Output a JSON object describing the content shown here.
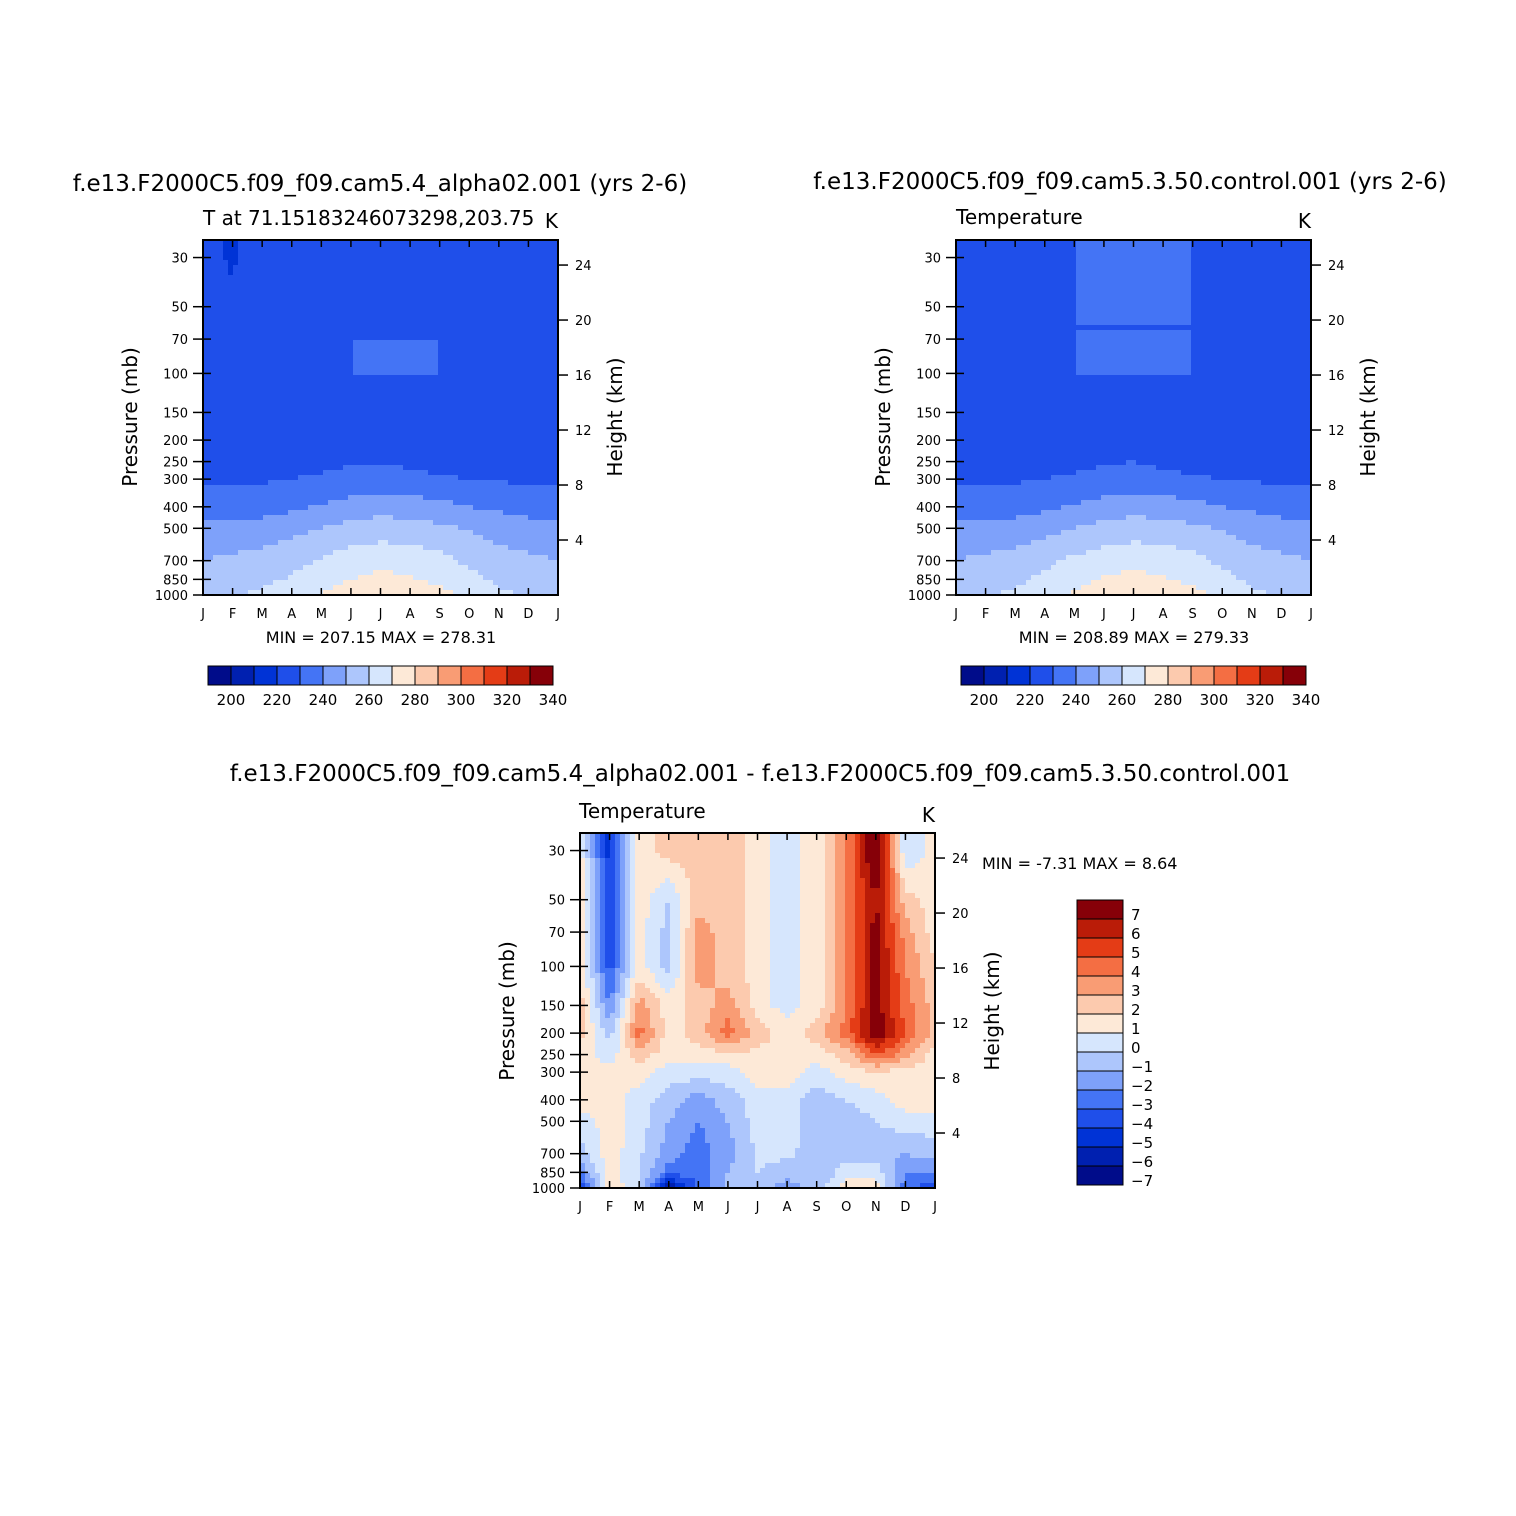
{
  "palette": {
    "temperature": [
      "#000c8a",
      "#0020b0",
      "#0033d6",
      "#1f4fea",
      "#4474f5",
      "#7ea1fa",
      "#adc6fc",
      "#d6e6fd",
      "#fde9d7",
      "#fccaae",
      "#f99c74",
      "#f46e43",
      "#e43c16",
      "#ba1c08",
      "#860008"
    ],
    "difference": [
      "#000c8a",
      "#0020b0",
      "#0033d6",
      "#1f4fea",
      "#4474f5",
      "#7ea1fa",
      "#adc6fc",
      "#d6e6fd",
      "#fde9d7",
      "#fccaae",
      "#f99c74",
      "#f46e43",
      "#e43c16",
      "#ba1c08",
      "#860008"
    ]
  },
  "panels": [
    {
      "id": "alpha02",
      "title": "f.e13.F2000C5.f09_f09.cam5.4_alpha02.001 (yrs 2-6)",
      "left_label": "T at 71.15183246073298,203.75",
      "right_label": "K",
      "stats": "MIN =  207.15  MAX =  278.31"
    },
    {
      "id": "control",
      "title": "f.e13.F2000C5.f09_f09.cam5.3.50.control.001 (yrs 2-6)",
      "left_label": "Temperature",
      "right_label": "K",
      "stats": "MIN =  208.89  MAX =  279.33"
    },
    {
      "id": "difference",
      "title": "f.e13.F2000C5.f09_f09.cam5.4_alpha02.001 - f.e13.F2000C5.f09_f09.cam5.3.50.control.001",
      "left_label": "Temperature",
      "right_label": "K",
      "stats": "MIN =   -7.31  MAX =    8.64"
    }
  ],
  "chart_data": [
    {
      "type": "heatmap",
      "title": "f.e13.F2000C5.f09_f09.cam5.4_alpha02.001 (yrs 2-6)",
      "subtitle": "T at 71.15183246073298,203.75",
      "units": "K",
      "xlabel": "",
      "ylabel": "Pressure (mb)",
      "y2label": "Height (km)",
      "x_ticks": [
        "J",
        "F",
        "M",
        "A",
        "M",
        "J",
        "J",
        "A",
        "S",
        "O",
        "N",
        "D",
        "J"
      ],
      "y_ticks": [
        30,
        50,
        70,
        100,
        150,
        200,
        250,
        300,
        400,
        500,
        700,
        850,
        1000
      ],
      "y2_ticks": [
        24,
        20,
        16,
        12,
        8,
        4
      ],
      "ylim": [
        1000,
        25
      ],
      "y_scale": "log",
      "levels": [
        200,
        210,
        220,
        230,
        240,
        250,
        260,
        270,
        280,
        290,
        300,
        310,
        320,
        330,
        340
      ],
      "colorbar_labels": [
        200,
        220,
        240,
        260,
        280,
        300,
        320,
        340
      ],
      "pressure": [
        1000,
        850,
        700,
        500,
        400,
        300,
        250,
        200,
        150,
        100,
        70,
        50,
        30
      ],
      "months": [
        "J",
        "F",
        "M",
        "A",
        "M",
        "J",
        "J",
        "A",
        "S",
        "O",
        "N",
        "D",
        "J"
      ],
      "values": [
        [
          257,
          259,
          262,
          265,
          270,
          275,
          278,
          276,
          273,
          267,
          262,
          259,
          257
        ],
        [
          254,
          256,
          258,
          261,
          266,
          270,
          273,
          271,
          268,
          263,
          258,
          256,
          254
        ],
        [
          250,
          252,
          254,
          257,
          261,
          265,
          267,
          266,
          263,
          258,
          254,
          252,
          250
        ],
        [
          242,
          243,
          244,
          247,
          250,
          253,
          255,
          254,
          252,
          249,
          246,
          244,
          242
        ],
        [
          235,
          236,
          236,
          238,
          241,
          244,
          246,
          245,
          243,
          240,
          238,
          236,
          235
        ],
        [
          229,
          229,
          229,
          230,
          231,
          233,
          234,
          233,
          231,
          230,
          229,
          229,
          229
        ],
        [
          227,
          226,
          226,
          227,
          228,
          229,
          229,
          228,
          227,
          226,
          226,
          226,
          227
        ],
        [
          226,
          224,
          225,
          226,
          227,
          227,
          226,
          225,
          224,
          225,
          225,
          226,
          226
        ],
        [
          226,
          225,
          225,
          227,
          228,
          228,
          228,
          228,
          227,
          226,
          228,
          227,
          226
        ],
        [
          226,
          223,
          226,
          228,
          229,
          230,
          230,
          230,
          230,
          228,
          227,
          226,
          226
        ],
        [
          225,
          222,
          226,
          228,
          229,
          230,
          230,
          230,
          230,
          227,
          227,
          225,
          225
        ],
        [
          224,
          221,
          226,
          228,
          229,
          229,
          229,
          229,
          229,
          226,
          225,
          225,
          224
        ],
        [
          223,
          219,
          226,
          228,
          229,
          229,
          229,
          229,
          229,
          226,
          225,
          230,
          223
        ]
      ]
    },
    {
      "type": "heatmap",
      "title": "f.e13.F2000C5.f09_f09.cam5.3.50.control.001 (yrs 2-6)",
      "subtitle": "Temperature",
      "units": "K",
      "xlabel": "",
      "ylabel": "Pressure (mb)",
      "y2label": "Height (km)",
      "x_ticks": [
        "J",
        "F",
        "M",
        "A",
        "M",
        "J",
        "J",
        "A",
        "S",
        "O",
        "N",
        "D",
        "J"
      ],
      "y_ticks": [
        30,
        50,
        70,
        100,
        150,
        200,
        250,
        300,
        400,
        500,
        700,
        850,
        1000
      ],
      "y2_ticks": [
        24,
        20,
        16,
        12,
        8,
        4
      ],
      "ylim": [
        1000,
        25
      ],
      "y_scale": "log",
      "levels": [
        200,
        210,
        220,
        230,
        240,
        250,
        260,
        270,
        280,
        290,
        300,
        310,
        320,
        330,
        340
      ],
      "colorbar_labels": [
        200,
        220,
        240,
        260,
        280,
        300,
        320,
        340
      ],
      "pressure": [
        1000,
        850,
        700,
        500,
        400,
        300,
        250,
        200,
        150,
        100,
        70,
        50,
        30
      ],
      "months": [
        "J",
        "F",
        "M",
        "A",
        "M",
        "J",
        "J",
        "A",
        "S",
        "O",
        "N",
        "D",
        "J"
      ],
      "values": [
        [
          257,
          259,
          262,
          266,
          271,
          276,
          279,
          277,
          273,
          267,
          262,
          259,
          257
        ],
        [
          254,
          256,
          258,
          262,
          266,
          271,
          273,
          271,
          268,
          263,
          258,
          256,
          254
        ],
        [
          250,
          252,
          254,
          258,
          262,
          265,
          267,
          266,
          263,
          258,
          254,
          252,
          250
        ],
        [
          242,
          243,
          244,
          247,
          250,
          253,
          255,
          254,
          252,
          249,
          246,
          244,
          242
        ],
        [
          235,
          236,
          236,
          238,
          241,
          244,
          246,
          245,
          243,
          240,
          238,
          236,
          235
        ],
        [
          229,
          229,
          229,
          230,
          231,
          233,
          234,
          233,
          231,
          230,
          229,
          229,
          229
        ],
        [
          227,
          226,
          226,
          227,
          228,
          229,
          230,
          228,
          227,
          226,
          225,
          226,
          227
        ],
        [
          226,
          226,
          226,
          227,
          228,
          229,
          229,
          228,
          227,
          226,
          222,
          223,
          226
        ],
        [
          226,
          226,
          227,
          228,
          229,
          229,
          229,
          229,
          229,
          228,
          225,
          226,
          226
        ],
        [
          226,
          226,
          227,
          229,
          230,
          230,
          230,
          230,
          230,
          229,
          226,
          226,
          226
        ],
        [
          225,
          225,
          227,
          230,
          230,
          230,
          230,
          230,
          230,
          228,
          226,
          225,
          225
        ],
        [
          225,
          225,
          226,
          229,
          230,
          230,
          230,
          230,
          230,
          227,
          226,
          225,
          225
        ],
        [
          225,
          225,
          226,
          229,
          230,
          230,
          230,
          230,
          230,
          227,
          226,
          225,
          225
        ]
      ]
    },
    {
      "type": "heatmap",
      "title": "f.e13.F2000C5.f09_f09.cam5.4_alpha02.001 - f.e13.F2000C5.f09_f09.cam5.3.50.control.001",
      "subtitle": "Temperature",
      "units": "K",
      "xlabel": "",
      "ylabel": "Pressure (mb)",
      "y2label": "Height (km)",
      "x_ticks": [
        "J",
        "F",
        "M",
        "A",
        "M",
        "J",
        "J",
        "A",
        "S",
        "O",
        "N",
        "D",
        "J"
      ],
      "y_ticks": [
        30,
        50,
        70,
        100,
        150,
        200,
        250,
        300,
        400,
        500,
        700,
        850,
        1000
      ],
      "y2_ticks": [
        24,
        20,
        16,
        12,
        8,
        4
      ],
      "ylim": [
        1000,
        25
      ],
      "y_scale": "log",
      "levels": [
        -7,
        -6,
        -5,
        -4,
        -3,
        -2,
        -1,
        0,
        1,
        2,
        3,
        4,
        5,
        6,
        7
      ],
      "colorbar_labels": [
        7,
        6,
        5,
        4,
        3,
        2,
        1,
        0,
        -1,
        -2,
        -3,
        -4,
        -5,
        -6,
        -7
      ],
      "pressure": [
        1000,
        850,
        700,
        500,
        400,
        300,
        250,
        200,
        150,
        100,
        70,
        50,
        30
      ],
      "months": [
        "J",
        "F",
        "M",
        "A",
        "M",
        "J",
        "J",
        "A",
        "S",
        "O",
        "N",
        "D",
        "J"
      ],
      "values": [
        [
          -5.0,
          0.8,
          -0.8,
          -7.0,
          -4.0,
          -1.5,
          -1.5,
          -2.5,
          -1.5,
          0.5,
          0.5,
          -3.5,
          -5.0
        ],
        [
          -3.0,
          0.5,
          -1.0,
          -3.5,
          -3.5,
          -2.0,
          -1.0,
          -1.5,
          -2.0,
          -0.5,
          -0.5,
          -3.0,
          -3.0
        ],
        [
          -1.5,
          0.6,
          -0.8,
          -2.5,
          -3.5,
          -2.5,
          -0.8,
          -0.8,
          -1.5,
          -1.5,
          -1.5,
          -2.0,
          -1.5
        ],
        [
          -0.5,
          0.5,
          -0.5,
          -2.0,
          -3.0,
          -2.0,
          -0.5,
          -0.5,
          -1.5,
          -1.5,
          -1.0,
          -0.5,
          -0.5
        ],
        [
          0.5,
          0.5,
          -0.5,
          -1.5,
          -2.5,
          -1.5,
          -0.5,
          -0.5,
          -1.5,
          -1.0,
          -0.5,
          0.5,
          0.5
        ],
        [
          0.5,
          0.5,
          0.5,
          -0.5,
          -0.5,
          -0.5,
          0.5,
          0.5,
          -0.5,
          0.5,
          1.0,
          0.5,
          0.5
        ],
        [
          0.5,
          -0.5,
          1.5,
          0.5,
          0.5,
          0.8,
          0.8,
          0.5,
          0.5,
          1.5,
          4.0,
          2.5,
          0.5
        ],
        [
          1.5,
          -1.5,
          3.5,
          0.5,
          1.5,
          3.5,
          1.5,
          0.5,
          1.5,
          3.5,
          7.0,
          4.0,
          1.5
        ],
        [
          1.5,
          -3.0,
          2.5,
          0.5,
          1.5,
          2.5,
          0.5,
          -0.5,
          0.5,
          3.0,
          6.5,
          3.5,
          1.5
        ],
        [
          1.0,
          -4.5,
          0.5,
          -1.5,
          2.5,
          1.5,
          0.5,
          -0.5,
          0.5,
          3.0,
          6.5,
          3.0,
          1.0
        ],
        [
          0.5,
          -5.0,
          0.5,
          -1.5,
          2.5,
          1.5,
          0.5,
          -0.5,
          0.5,
          3.0,
          6.5,
          2.5,
          0.5
        ],
        [
          0.5,
          -5.0,
          0.5,
          -1.0,
          1.5,
          1.5,
          0.5,
          -0.5,
          0.5,
          3.0,
          6.0,
          1.5,
          0.5
        ],
        [
          0.5,
          -5.5,
          0.5,
          1.5,
          1.5,
          1.5,
          0.5,
          -0.5,
          0.5,
          3.0,
          7.5,
          -1.0,
          0.5
        ]
      ]
    }
  ]
}
